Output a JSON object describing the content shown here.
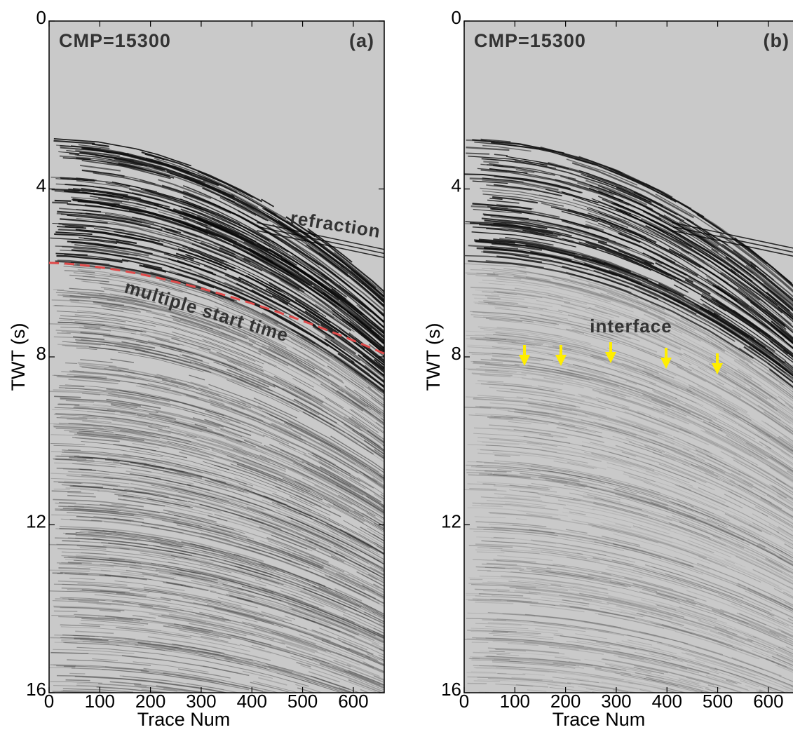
{
  "chart_data": [
    {
      "type": "seismic",
      "title": "CMP=15300",
      "panel_label": "(a)",
      "xlabel": "Trace Num",
      "ylabel": "TWT (s)",
      "xlim": [
        0,
        661
      ],
      "ylim": [
        0,
        16
      ],
      "y_inverted": true,
      "xticks": [
        0,
        100,
        200,
        300,
        400,
        500,
        600
      ],
      "yticks": [
        0,
        4,
        8,
        12,
        16
      ],
      "annotations": [
        "refraction",
        "multiple start time"
      ]
    },
    {
      "type": "seismic",
      "title": "CMP=15300",
      "panel_label": "(b)",
      "xlabel": "Trace Num",
      "ylabel": "TWT (s)",
      "xlim": [
        0,
        661
      ],
      "ylim": [
        0,
        16
      ],
      "y_inverted": true,
      "xticks": [
        0,
        100,
        200,
        300,
        400,
        500,
        600
      ],
      "yticks": [
        0,
        4,
        8,
        12,
        16
      ],
      "annotations": [
        "interface"
      ]
    }
  ]
}
